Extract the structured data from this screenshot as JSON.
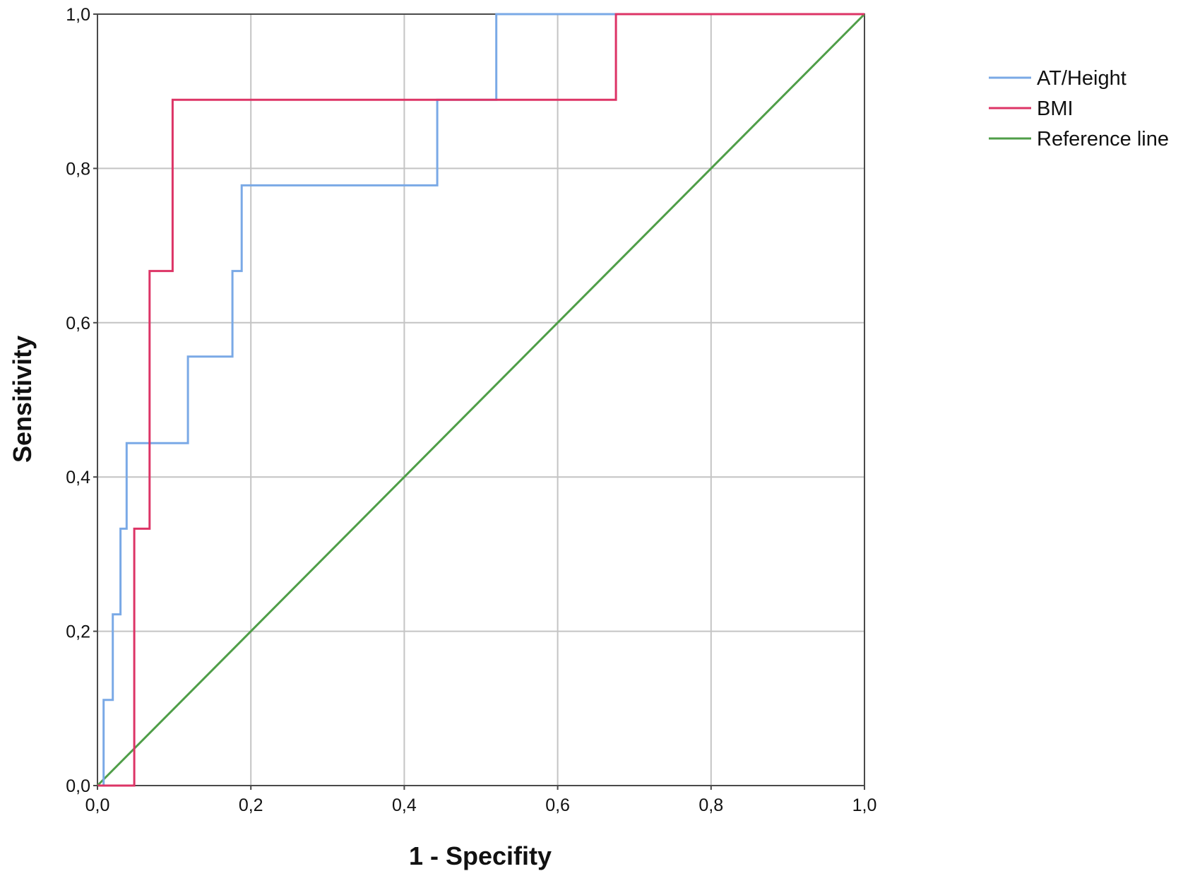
{
  "chart_data": {
    "type": "line",
    "title": "",
    "xlabel": "1 - Specifity",
    "ylabel": "Sensitivity",
    "xlim": [
      0,
      1
    ],
    "ylim": [
      0,
      1
    ],
    "xticks": [
      0,
      0.2,
      0.4,
      0.6,
      0.8,
      1.0
    ],
    "yticks": [
      0,
      0.2,
      0.4,
      0.6,
      0.8,
      1.0
    ],
    "xtick_labels": [
      "0,0",
      "0,2",
      "0,4",
      "0,6",
      "0,8",
      "1,0"
    ],
    "ytick_labels": [
      "0,0",
      "0,2",
      "0,4",
      "0,6",
      "0,8",
      "1,0"
    ],
    "grid": true,
    "legend": "right",
    "series": [
      {
        "name": "AT/Height",
        "color": "#7aa9e6",
        "step": true,
        "x": [
          0,
          0.008,
          0.008,
          0.02,
          0.02,
          0.03,
          0.03,
          0.038,
          0.038,
          0.118,
          0.118,
          0.176,
          0.176,
          0.188,
          0.188,
          0.443,
          0.443,
          0.52,
          0.52,
          1.0
        ],
        "y": [
          0,
          0,
          0.111,
          0.111,
          0.222,
          0.222,
          0.333,
          0.333,
          0.444,
          0.444,
          0.556,
          0.556,
          0.667,
          0.667,
          0.778,
          0.778,
          0.889,
          0.889,
          1.0,
          1.0
        ]
      },
      {
        "name": "BMI",
        "color": "#dd3466",
        "step": true,
        "x": [
          0,
          0.048,
          0.048,
          0.068,
          0.068,
          0.098,
          0.098,
          0.676,
          0.676,
          1.0
        ],
        "y": [
          0,
          0,
          0.333,
          0.333,
          0.667,
          0.667,
          0.889,
          0.889,
          1.0,
          1.0
        ]
      },
      {
        "name": "Reference line",
        "color": "#4f9e48",
        "step": false,
        "x": [
          0,
          1
        ],
        "y": [
          0,
          1
        ]
      }
    ]
  }
}
